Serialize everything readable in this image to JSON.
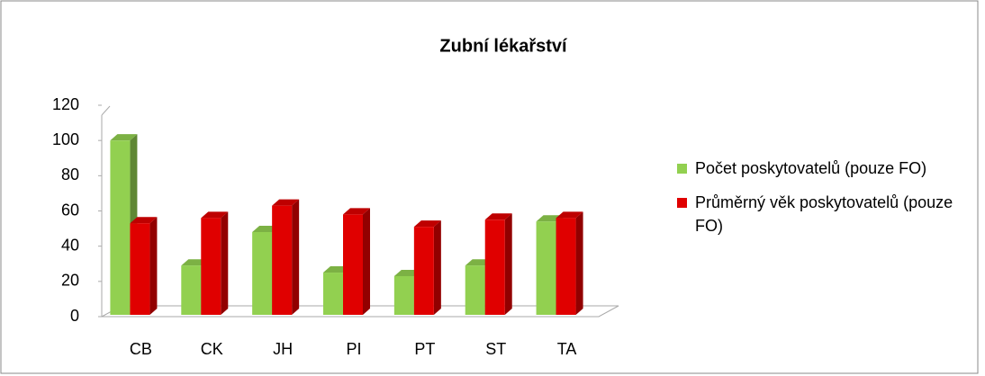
{
  "chart_data": {
    "type": "bar3d",
    "title": "Zubní lékařství",
    "categories": [
      "CB",
      "CK",
      "JH",
      "PI",
      "PT",
      "ST",
      "TA"
    ],
    "series": [
      {
        "name": "Počet poskytovatelů (pouze FO)",
        "color": "#92d050",
        "values": [
          100,
          29,
          48,
          25,
          23,
          29,
          54
        ]
      },
      {
        "name": "Průměrný věk poskytovatelů (pouze FO)",
        "color": "#e00000",
        "values": [
          53,
          56,
          63,
          58,
          51,
          55,
          56
        ]
      }
    ],
    "ylim": [
      0,
      120
    ],
    "yticks": [
      0,
      20,
      40,
      60,
      80,
      100,
      120
    ],
    "legend": "right"
  }
}
